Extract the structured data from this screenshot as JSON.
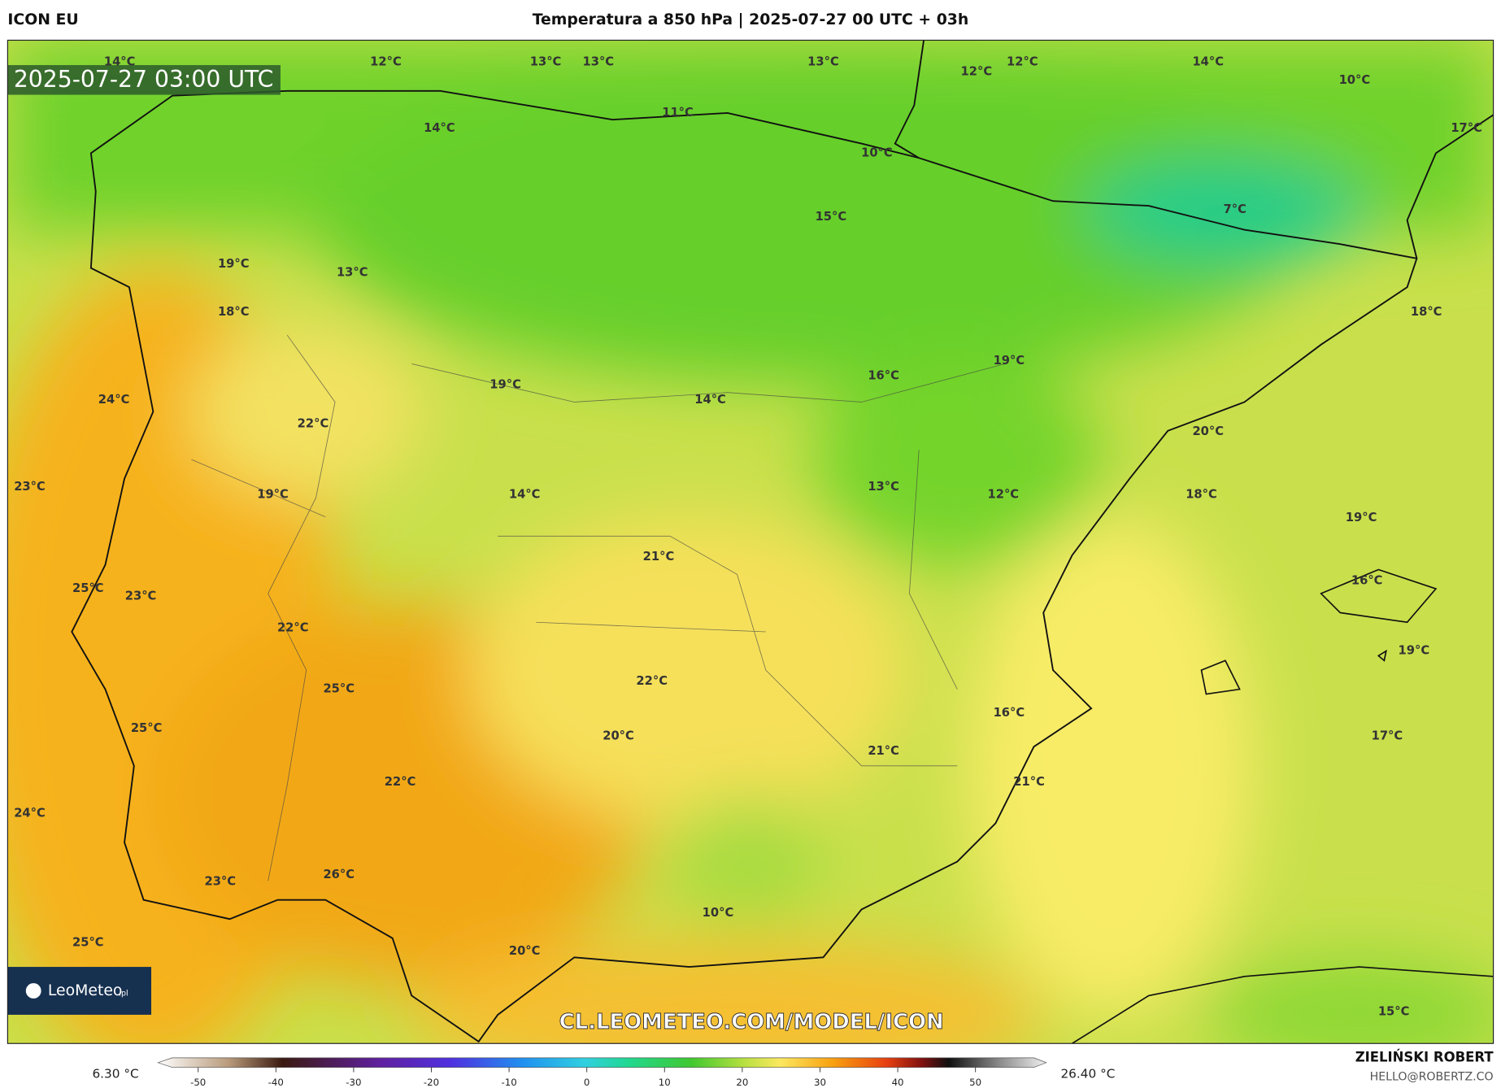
{
  "header": {
    "model": "ICON EU",
    "title": "Temperatura a 850 hPa | 2025-07-27 00 UTC + 03h"
  },
  "map": {
    "timestamp": "2025-07-27 03:00 UTC",
    "watermark": "CL.LEOMETEO.COM/MODEL/ICON",
    "logo": "LeoMeteo",
    "logo_suffix": ".pl",
    "labels": [
      "14°C",
      "12°C",
      "13°C",
      "13°C",
      "13°C",
      "12°C",
      "12°C",
      "14°C",
      "10°C",
      "17°C",
      "14°C",
      "11°C",
      "10°C",
      "7°C",
      "15°C",
      "19°C",
      "13°C",
      "18°C",
      "18°C",
      "19°C",
      "16°C",
      "19°C",
      "14°C",
      "24°C",
      "22°C",
      "20°C",
      "23°C",
      "13°C",
      "12°C",
      "14°C",
      "19°C",
      "18°C",
      "19°C",
      "21°C",
      "16°C",
      "25°C",
      "23°C",
      "22°C",
      "19°C",
      "22°C",
      "25°C",
      "16°C",
      "25°C",
      "20°C",
      "17°C",
      "21°C",
      "21°C",
      "22°C",
      "24°C",
      "26°C",
      "23°C",
      "10°C",
      "25°C",
      "20°C",
      "15°C"
    ]
  },
  "colorbar": {
    "min_label": "6.30 °C",
    "max_label": "26.40 °C",
    "ticks": [
      -50,
      -40,
      -30,
      -20,
      -10,
      0,
      10,
      20,
      30,
      40,
      50
    ]
  },
  "footer": {
    "author": "ZIELIŃSKI ROBERT",
    "email": "HELLO@ROBERTZ.CO"
  }
}
